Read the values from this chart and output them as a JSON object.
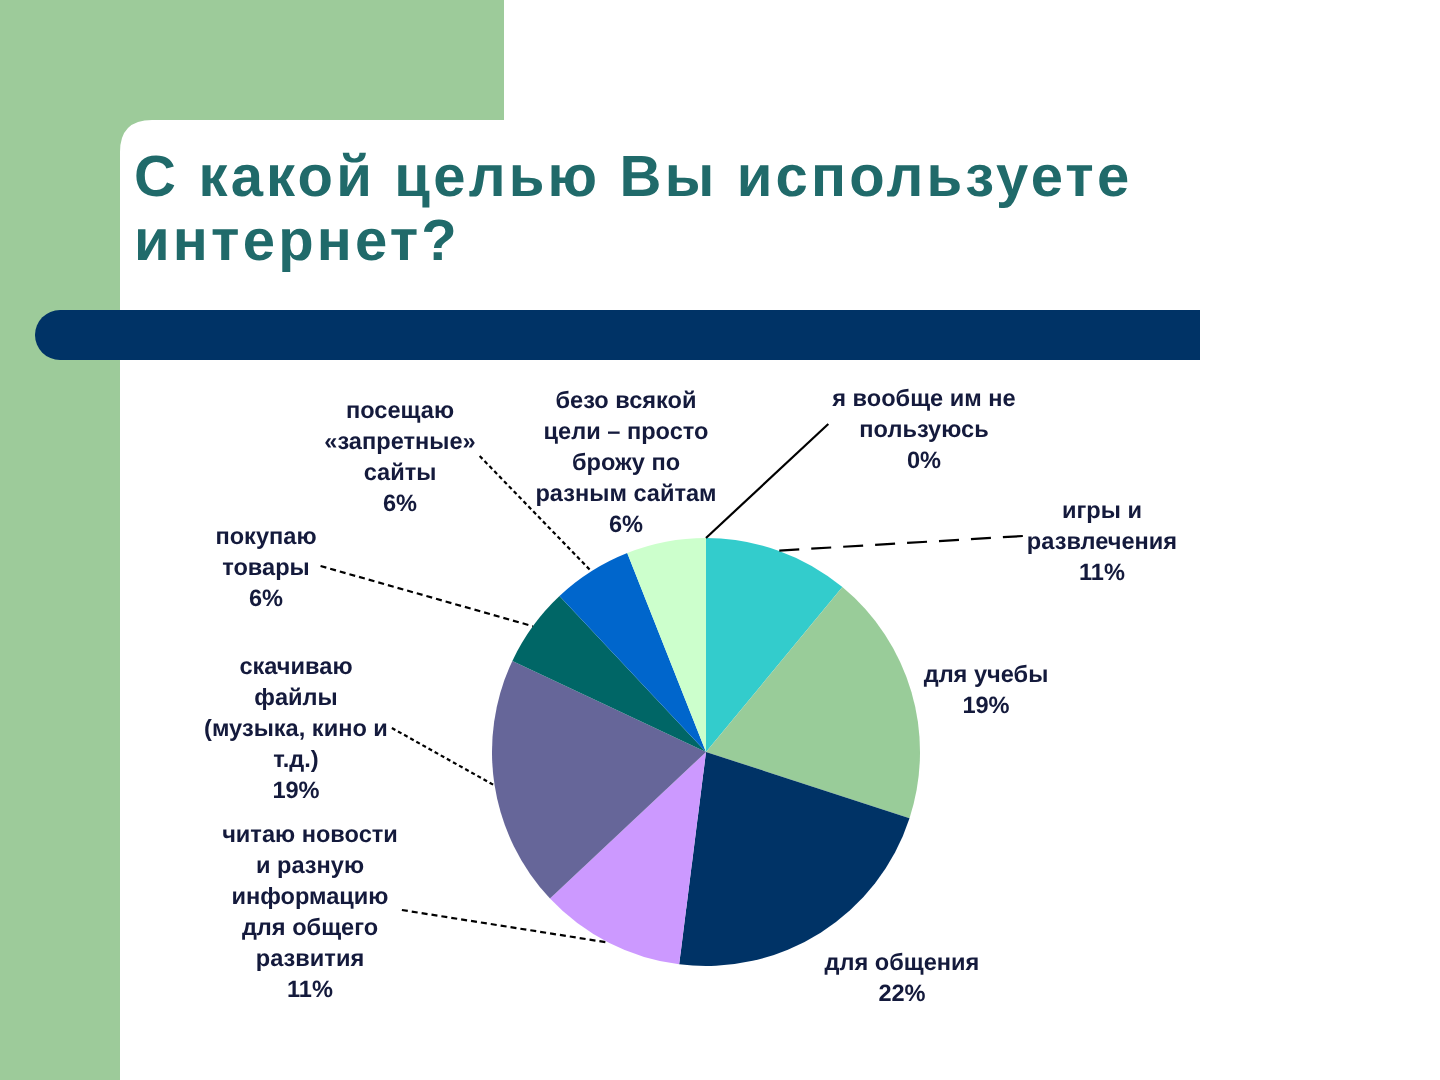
{
  "chart_data": {
    "type": "pie",
    "title": "С какой целью Вы используете интернет?",
    "categories": [
      "я вообще им не\nпользуюсь",
      "игры и\nразвлечения",
      "для учебы",
      "для общения",
      "читаю новости\nи разную\nинформацию\nдля общего\nразвития",
      "скачиваю\nфайлы\n(музыка, кино и\nт.д.)",
      "покупаю\nтовары",
      "посещаю\n«запретные»\nсайты",
      "безо всякой\nцели – просто\nброжу по\nразным сайтам"
    ],
    "values": [
      0,
      11,
      19,
      22,
      11,
      19,
      6,
      6,
      6
    ],
    "colors": [
      null,
      "#33cccc",
      "#99cc99",
      "#003366",
      "#cc99ff",
      "#666699",
      "#006666",
      "#0066cc",
      "#ccffcc"
    ],
    "value_labels": [
      "0%",
      "11%",
      "19%",
      "22%",
      "11%",
      "19%",
      "6%",
      "6%",
      "6%"
    ]
  }
}
